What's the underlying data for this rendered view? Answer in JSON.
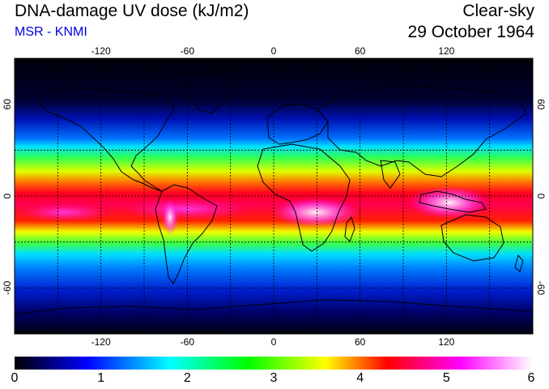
{
  "header": {
    "title": "DNA-damage UV dose (kJ/m2)",
    "source": "MSR - KNMI",
    "condition": "Clear-sky",
    "date": "29 October 1964"
  },
  "map": {
    "projection": "equirectangular",
    "lon_range": [
      -180,
      180
    ],
    "lat_range": [
      -90,
      90
    ],
    "lon_ticks": [
      "-120",
      "-60",
      "0",
      "60",
      "120"
    ],
    "lat_ticks_left": [
      "60",
      "0",
      "-60"
    ],
    "lat_ticks_right": [
      "60",
      "0",
      "-60"
    ],
    "gridlines": "dotted every 30 degrees",
    "coastlines": true,
    "variable": "DNA-damage UV dose",
    "units": "kJ/m2"
  },
  "colorbar": {
    "min": 0,
    "max": 6,
    "tick_labels": [
      "0",
      "1",
      "2",
      "3",
      "4",
      "5",
      "6"
    ],
    "colors": [
      "#000000",
      "#0000ff",
      "#00ffff",
      "#00ff00",
      "#ffff00",
      "#ff0000",
      "#ff00ff",
      "#ffffff"
    ]
  }
}
